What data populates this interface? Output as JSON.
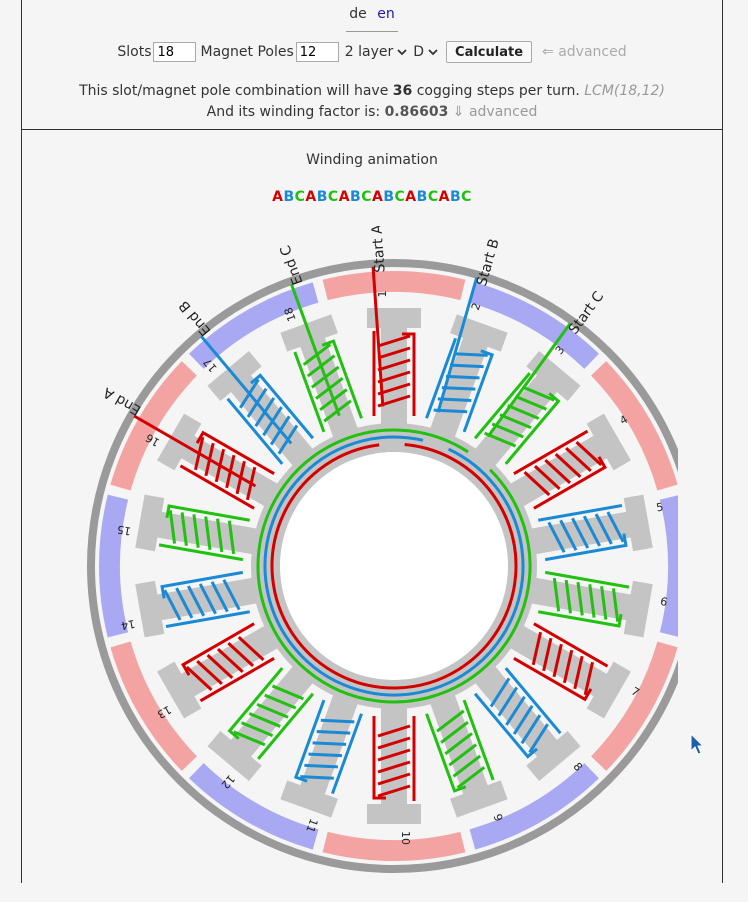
{
  "lang": {
    "de": "de",
    "en": "en"
  },
  "controls": {
    "slots_label": "Slots",
    "slots_value": "18",
    "poles_label": "Magnet Poles",
    "poles_value": "12",
    "layer_value": "2 layer",
    "connection_value": "D",
    "calculate_label": "Calculate",
    "advanced_label": "⇐ advanced"
  },
  "info": {
    "line1_prefix": "This slot/magnet pole combination will have",
    "cogging_steps": "36",
    "line1_suffix": "cogging steps per turn.",
    "lcm": "LCM(18,12)",
    "line2_prefix": "And its winding factor is:",
    "winding_factor": "0.86603",
    "advanced_label": "⇓ advanced"
  },
  "animation": {
    "title": "Winding animation",
    "sequence": [
      "A",
      "B",
      "C",
      "A",
      "B",
      "C",
      "A",
      "B",
      "C",
      "A",
      "B",
      "C",
      "A",
      "B",
      "C",
      "A",
      "B",
      "C"
    ]
  },
  "phase_colors": {
    "A": "#d40000",
    "B": "#1a8ad4",
    "C": "#22c011"
  },
  "magnet_colors": {
    "N": "#f4a3a3",
    "S": "#a9a9f3"
  },
  "slot_labels": [
    "1",
    "2",
    "3",
    "4",
    "5",
    "6",
    "7",
    "8",
    "9",
    "10",
    "11",
    "12",
    "13",
    "14",
    "15",
    "16",
    "17",
    "18"
  ],
  "coil_phases": [
    "A",
    "B",
    "C",
    "A",
    "B",
    "C",
    "A",
    "B",
    "C",
    "A",
    "B",
    "C",
    "A",
    "B",
    "C",
    "A",
    "B",
    "C"
  ],
  "magnets": [
    "N",
    "S",
    "N",
    "S",
    "N",
    "S",
    "N",
    "S",
    "N",
    "S",
    "N",
    "S"
  ],
  "terminals": {
    "start_a": "Start A",
    "start_b": "Start B",
    "start_c": "Start C",
    "end_a": "End A",
    "end_b": "End B",
    "end_c": "End C"
  }
}
